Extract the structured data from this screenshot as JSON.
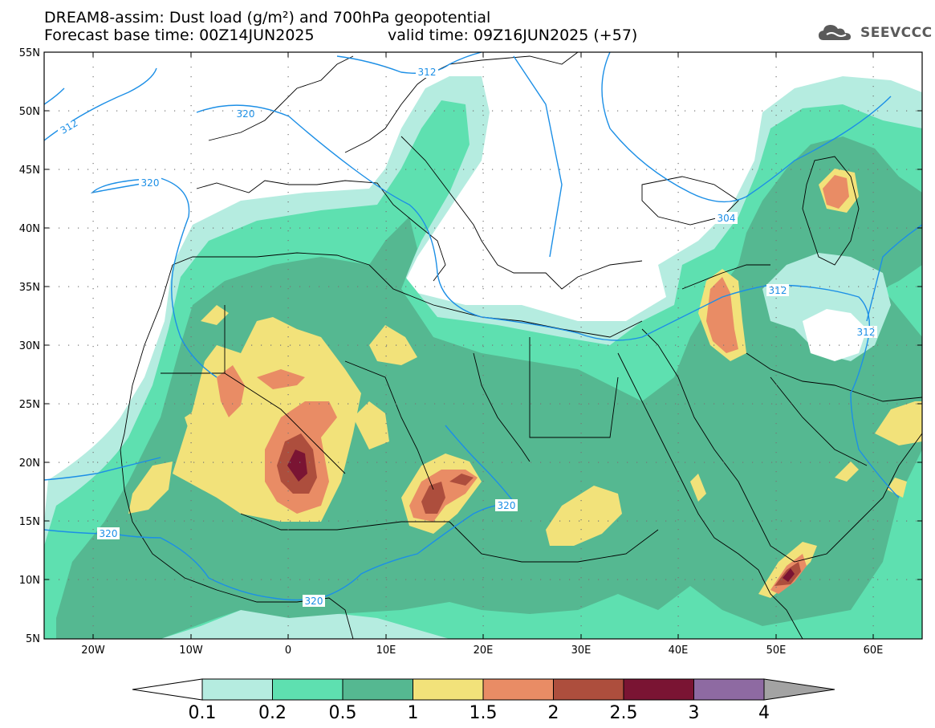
{
  "header": {
    "title_line1": "DREAM8-assim: Dust load (g/m²) and 700hPa geopotential",
    "title_line2_left": "Forecast base time: 00Z14JUN2025",
    "title_line2_right": "valid time: 09Z16JUN2025 (+57)",
    "logo_text": "SEEVCCC"
  },
  "axes": {
    "lat_labels": [
      "55N",
      "50N",
      "45N",
      "40N",
      "35N",
      "30N",
      "25N",
      "20N",
      "15N",
      "10N",
      "5N"
    ],
    "lon_labels": [
      "20W",
      "10W",
      "0",
      "10E",
      "20E",
      "30E",
      "40E",
      "50E",
      "60E"
    ]
  },
  "contours": {
    "labels": [
      "312",
      "320",
      "320",
      "312",
      "304",
      "312",
      "312",
      "320",
      "320",
      "320"
    ]
  },
  "colorbar": {
    "labels": [
      "0.1",
      "0.2",
      "0.5",
      "1",
      "1.5",
      "2",
      "2.5",
      "3",
      "4"
    ],
    "colors": [
      "#ffffff",
      "#b5ece0",
      "#5ee0b0",
      "#55b891",
      "#f2e27a",
      "#e98c65",
      "#ad4e3d",
      "#7a1433",
      "#8e6aa2",
      "#a3a3a3"
    ]
  },
  "colors": {
    "contour_line": "#1c8fe6",
    "dust_0_1": "#b5ece0",
    "dust_0_2": "#5ee0b0",
    "dust_0_5": "#55b891",
    "dust_1": "#f2e27a",
    "dust_1_5": "#e98c65",
    "dust_2": "#ad4e3d",
    "dust_2_5": "#7a1433"
  }
}
